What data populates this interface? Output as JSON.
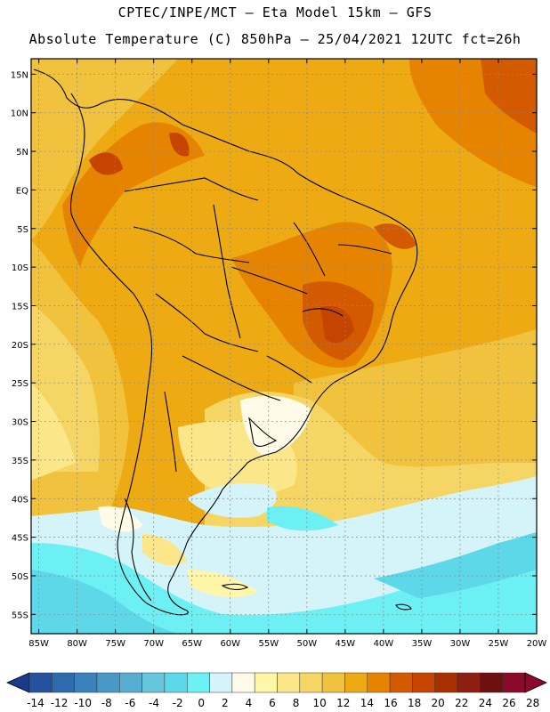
{
  "header": {
    "title_line1": "CPTEC/INPE/MCT –  Eta Model 15km – GFS",
    "title_line2": "Absolute Temperature (C) 850hPa – 25/04/2021 12UTC fct=26h"
  },
  "map": {
    "lon_labels": [
      "85W",
      "80W",
      "75W",
      "70W",
      "65W",
      "60W",
      "55W",
      "50W",
      "45W",
      "40W",
      "35W",
      "30W",
      "25W",
      "20W"
    ],
    "lat_labels": [
      "15N",
      "10N",
      "5N",
      "EQ",
      "5S",
      "10S",
      "15S",
      "20S",
      "25S",
      "30S",
      "35S",
      "40S",
      "45S",
      "50S",
      "55S"
    ],
    "lon_range": [
      -86,
      -20
    ],
    "lat_range": [
      17,
      -57.5
    ]
  },
  "colorbar": {
    "labels": [
      "-14",
      "-12",
      "-10",
      "-8",
      "-6",
      "-4",
      "-2",
      "0",
      "2",
      "4",
      "6",
      "8",
      "10",
      "12",
      "14",
      "16",
      "18",
      "20",
      "22",
      "24",
      "26",
      "28"
    ],
    "colors": [
      "#1a3a8a",
      "#24529e",
      "#2e6aae",
      "#3a82bc",
      "#4a98c8",
      "#58aed2",
      "#66c6dc",
      "#5cd8e8",
      "#6cf0f4",
      "#d4f4fa",
      "#fffbe8",
      "#fff6a8",
      "#fbe68a",
      "#f5d664",
      "#f0c23e",
      "#eeaa12",
      "#e68400",
      "#d45a00",
      "#c44400",
      "#a83000",
      "#8c1f10",
      "#6e1010",
      "#8a0a2a",
      "#8a0a2a"
    ]
  }
}
